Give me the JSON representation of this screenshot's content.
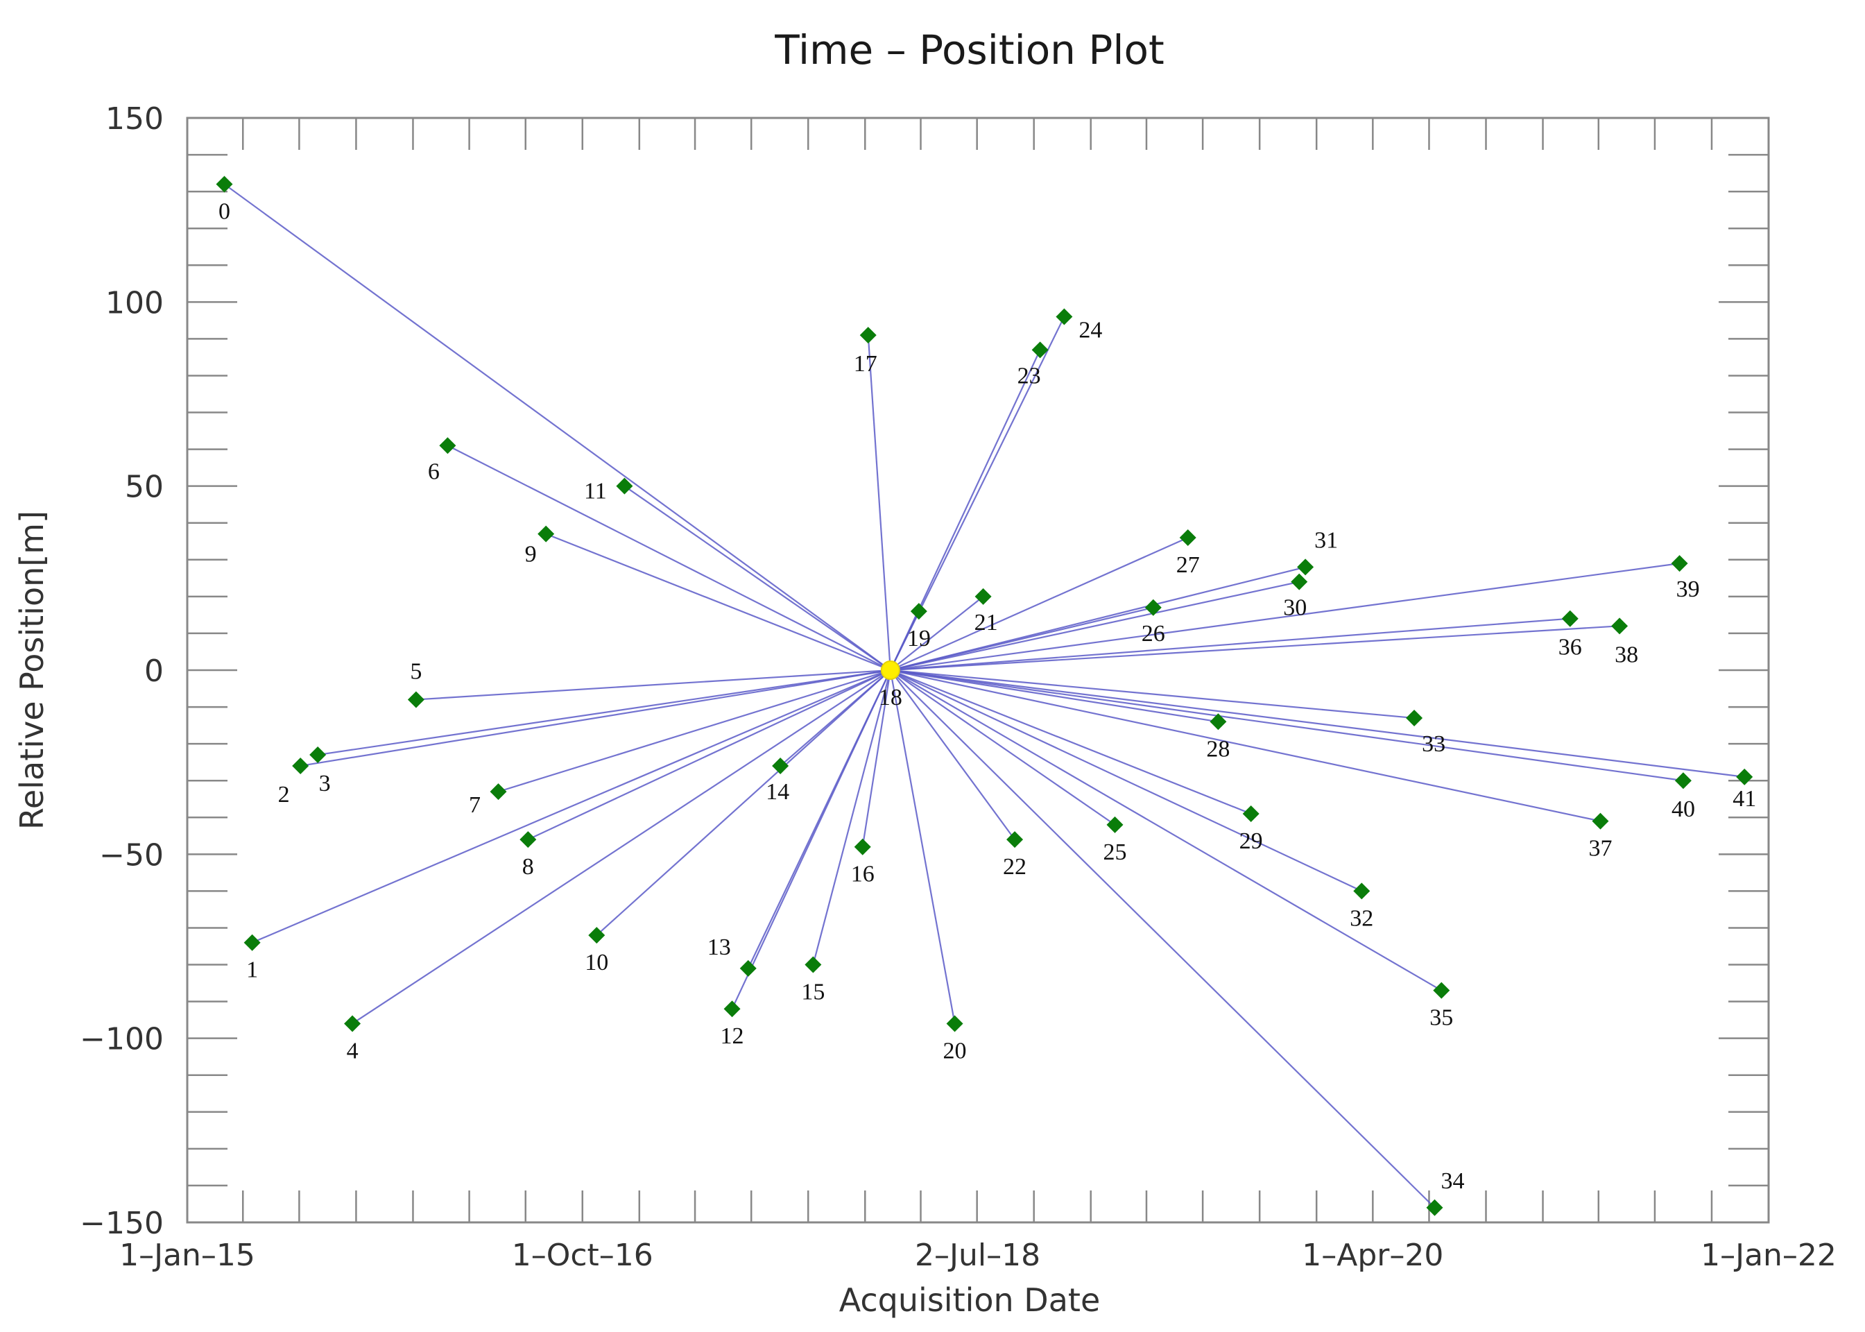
{
  "chart_data": {
    "type": "scatter",
    "title": "Time – Position Plot",
    "xlabel": "Acquisition Date",
    "ylabel": "Relative Position[m]",
    "xlim": [
      "2015-01-01",
      "2022-01-01"
    ],
    "ylim": [
      -150,
      150
    ],
    "x_ticks": [
      "1–Jan–15",
      "1–Oct–16",
      "2–Jul–18",
      "1–Apr–20",
      "1–Jan–22"
    ],
    "y_ticks": [
      "150",
      "100",
      "50",
      "0",
      "−50",
      "−100",
      "−150"
    ],
    "y_tick_values": [
      150,
      100,
      50,
      0,
      -50,
      -100,
      -150
    ],
    "reference_id": "18",
    "colors": {
      "point": "#0a7d0a",
      "reference": "#ffee00",
      "line": "#5a5ac8",
      "axis": "#888888"
    },
    "points": [
      {
        "id": "0",
        "date": "2015-03-02",
        "y": 132
      },
      {
        "id": "1",
        "date": "2015-04-16",
        "y": -74
      },
      {
        "id": "2",
        "date": "2015-07-03",
        "y": -26
      },
      {
        "id": "3",
        "date": "2015-07-31",
        "y": -23
      },
      {
        "id": "4",
        "date": "2015-09-25",
        "y": -96
      },
      {
        "id": "5",
        "date": "2016-01-06",
        "y": -8
      },
      {
        "id": "6",
        "date": "2016-02-26",
        "y": 61
      },
      {
        "id": "7",
        "date": "2016-05-18",
        "y": -33
      },
      {
        "id": "8",
        "date": "2016-07-05",
        "y": -46
      },
      {
        "id": "9",
        "date": "2016-08-03",
        "y": 37
      },
      {
        "id": "10",
        "date": "2016-10-24",
        "y": -72
      },
      {
        "id": "11",
        "date": "2016-12-08",
        "y": 50
      },
      {
        "id": "12",
        "date": "2017-05-31",
        "y": -92
      },
      {
        "id": "13",
        "date": "2017-06-26",
        "y": -81
      },
      {
        "id": "14",
        "date": "2017-08-17",
        "y": -26
      },
      {
        "id": "15",
        "date": "2017-10-09",
        "y": -80
      },
      {
        "id": "16",
        "date": "2017-12-28",
        "y": -48
      },
      {
        "id": "17",
        "date": "2018-01-06",
        "y": 91
      },
      {
        "id": "18",
        "date": "2018-02-11",
        "y": 0
      },
      {
        "id": "19",
        "date": "2018-03-29",
        "y": 16
      },
      {
        "id": "20",
        "date": "2018-05-26",
        "y": -96
      },
      {
        "id": "21",
        "date": "2018-07-11",
        "y": 20
      },
      {
        "id": "22",
        "date": "2018-08-31",
        "y": -46
      },
      {
        "id": "23",
        "date": "2018-10-11",
        "y": 87
      },
      {
        "id": "24",
        "date": "2018-11-19",
        "y": 96
      },
      {
        "id": "25",
        "date": "2019-02-09",
        "y": -42
      },
      {
        "id": "26",
        "date": "2019-04-12",
        "y": 17
      },
      {
        "id": "27",
        "date": "2019-06-07",
        "y": 36
      },
      {
        "id": "28",
        "date": "2019-07-26",
        "y": -14
      },
      {
        "id": "29",
        "date": "2019-09-17",
        "y": -39
      },
      {
        "id": "30",
        "date": "2019-12-04",
        "y": 24
      },
      {
        "id": "31",
        "date": "2019-12-14",
        "y": 28
      },
      {
        "id": "32",
        "date": "2020-03-14",
        "y": -60
      },
      {
        "id": "33",
        "date": "2020-06-07",
        "y": -13
      },
      {
        "id": "34",
        "date": "2020-07-10",
        "y": -146
      },
      {
        "id": "35",
        "date": "2020-07-21",
        "y": -87
      },
      {
        "id": "36",
        "date": "2021-02-14",
        "y": 14
      },
      {
        "id": "37",
        "date": "2021-04-04",
        "y": -41
      },
      {
        "id": "38",
        "date": "2021-05-05",
        "y": 12
      },
      {
        "id": "39",
        "date": "2021-08-10",
        "y": 29
      },
      {
        "id": "40",
        "date": "2021-08-16",
        "y": -30
      },
      {
        "id": "41",
        "date": "2021-11-23",
        "y": -29
      }
    ]
  }
}
